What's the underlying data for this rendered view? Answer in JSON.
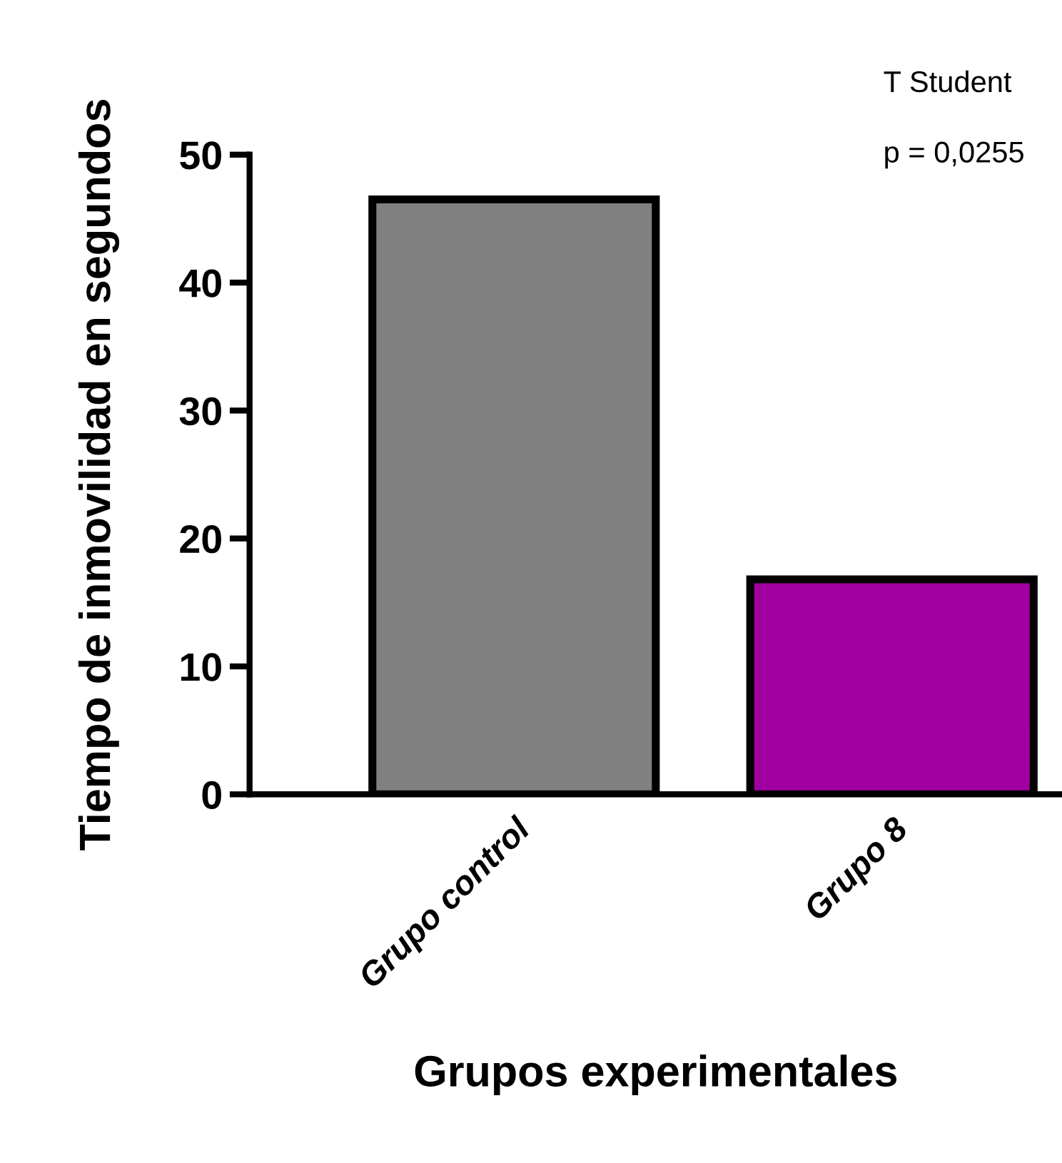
{
  "chart_data": {
    "type": "bar",
    "categories": [
      "Grupo control",
      "Grupo 8"
    ],
    "values": [
      46.5,
      16.8
    ],
    "colors": [
      "#808080",
      "#a000a0"
    ],
    "xlabel": "Grupos experimentales",
    "ylabel": "Tiempo de inmovilidad en segundos",
    "ylim": [
      0,
      50
    ],
    "yticks": [
      0,
      10,
      20,
      30,
      40,
      50
    ],
    "annotations": [
      "T Student",
      "p = 0,0255"
    ],
    "grid": false,
    "legend": false
  }
}
